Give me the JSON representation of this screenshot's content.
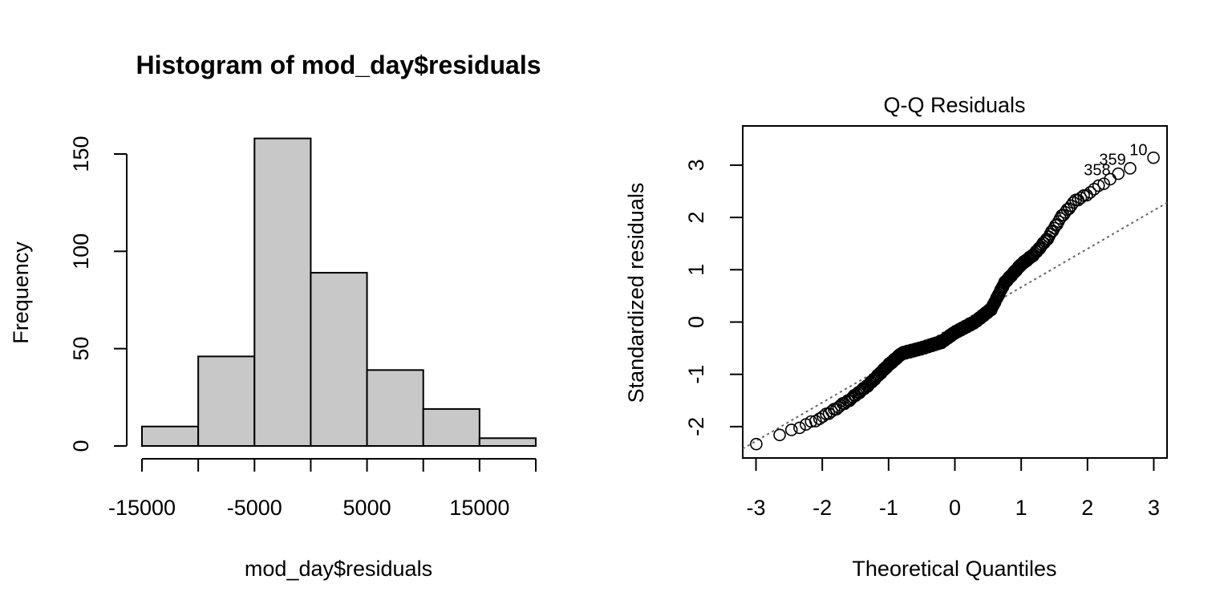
{
  "chart_data": [
    {
      "type": "bar",
      "title": "Histogram of mod_day$residuals",
      "xlabel": "mod_day$residuals",
      "ylabel": "Frequency",
      "bin_edges": [
        -15000,
        -10000,
        -5000,
        0,
        5000,
        10000,
        15000,
        20000
      ],
      "values": [
        10,
        46,
        158,
        89,
        39,
        19,
        4
      ],
      "xlim": [
        -15000,
        20000
      ],
      "ylim": [
        0,
        150
      ],
      "x_ticks": [
        -15000,
        -10000,
        -5000,
        0,
        5000,
        10000,
        15000,
        20000
      ],
      "x_tick_labels": [
        "-15000",
        "",
        "-5000",
        "",
        "5000",
        "",
        "15000",
        ""
      ],
      "y_ticks": [
        0,
        50,
        100,
        150
      ],
      "y_tick_labels": [
        "0",
        "50",
        "100",
        "150"
      ],
      "bar_color": "#c8c8c8"
    },
    {
      "type": "scatter",
      "title": "Q-Q Residuals",
      "xlabel": "Theoretical Quantiles",
      "ylabel": "Standardized residuals",
      "xlim": [
        -3.2,
        3.2
      ],
      "ylim": [
        -2.6,
        3.75
      ],
      "x_ticks": [
        -3,
        -2,
        -1,
        0,
        1,
        2,
        3
      ],
      "x_tick_labels": [
        "-3",
        "-2",
        "-1",
        "0",
        "1",
        "2",
        "3"
      ],
      "y_ticks": [
        -2,
        -1,
        0,
        1,
        2,
        3
      ],
      "y_tick_labels": [
        "-2",
        "-1",
        "0",
        "1",
        "2",
        "3"
      ],
      "curve_knots": [
        [
          -3.0,
          -2.33
        ],
        [
          -2.5,
          -2.1
        ],
        [
          -2.0,
          -1.82
        ],
        [
          -1.6,
          -1.5
        ],
        [
          -1.3,
          -1.2
        ],
        [
          -1.0,
          -0.82
        ],
        [
          -0.8,
          -0.6
        ],
        [
          -0.5,
          -0.5
        ],
        [
          -0.2,
          -0.38
        ],
        [
          0.0,
          -0.2
        ],
        [
          0.3,
          0.0
        ],
        [
          0.55,
          0.25
        ],
        [
          0.75,
          0.75
        ],
        [
          1.0,
          1.1
        ],
        [
          1.2,
          1.3
        ],
        [
          1.4,
          1.6
        ],
        [
          1.6,
          2.0
        ],
        [
          1.8,
          2.3
        ],
        [
          2.0,
          2.45
        ],
        [
          2.3,
          2.7
        ],
        [
          2.5,
          2.85
        ],
        [
          2.7,
          3.0
        ],
        [
          3.0,
          3.15
        ]
      ],
      "point_count": 365,
      "outliers": [
        {
          "label": "10",
          "x": 3.0,
          "y": 3.16
        },
        {
          "label": "359",
          "x": 2.64,
          "y": 3.02
        },
        {
          "label": "358",
          "x": 2.47,
          "y": 2.87
        }
      ],
      "reference_line": {
        "slope": 0.735,
        "intercept": -0.07,
        "style": "dotted",
        "color": "#666666"
      }
    }
  ]
}
